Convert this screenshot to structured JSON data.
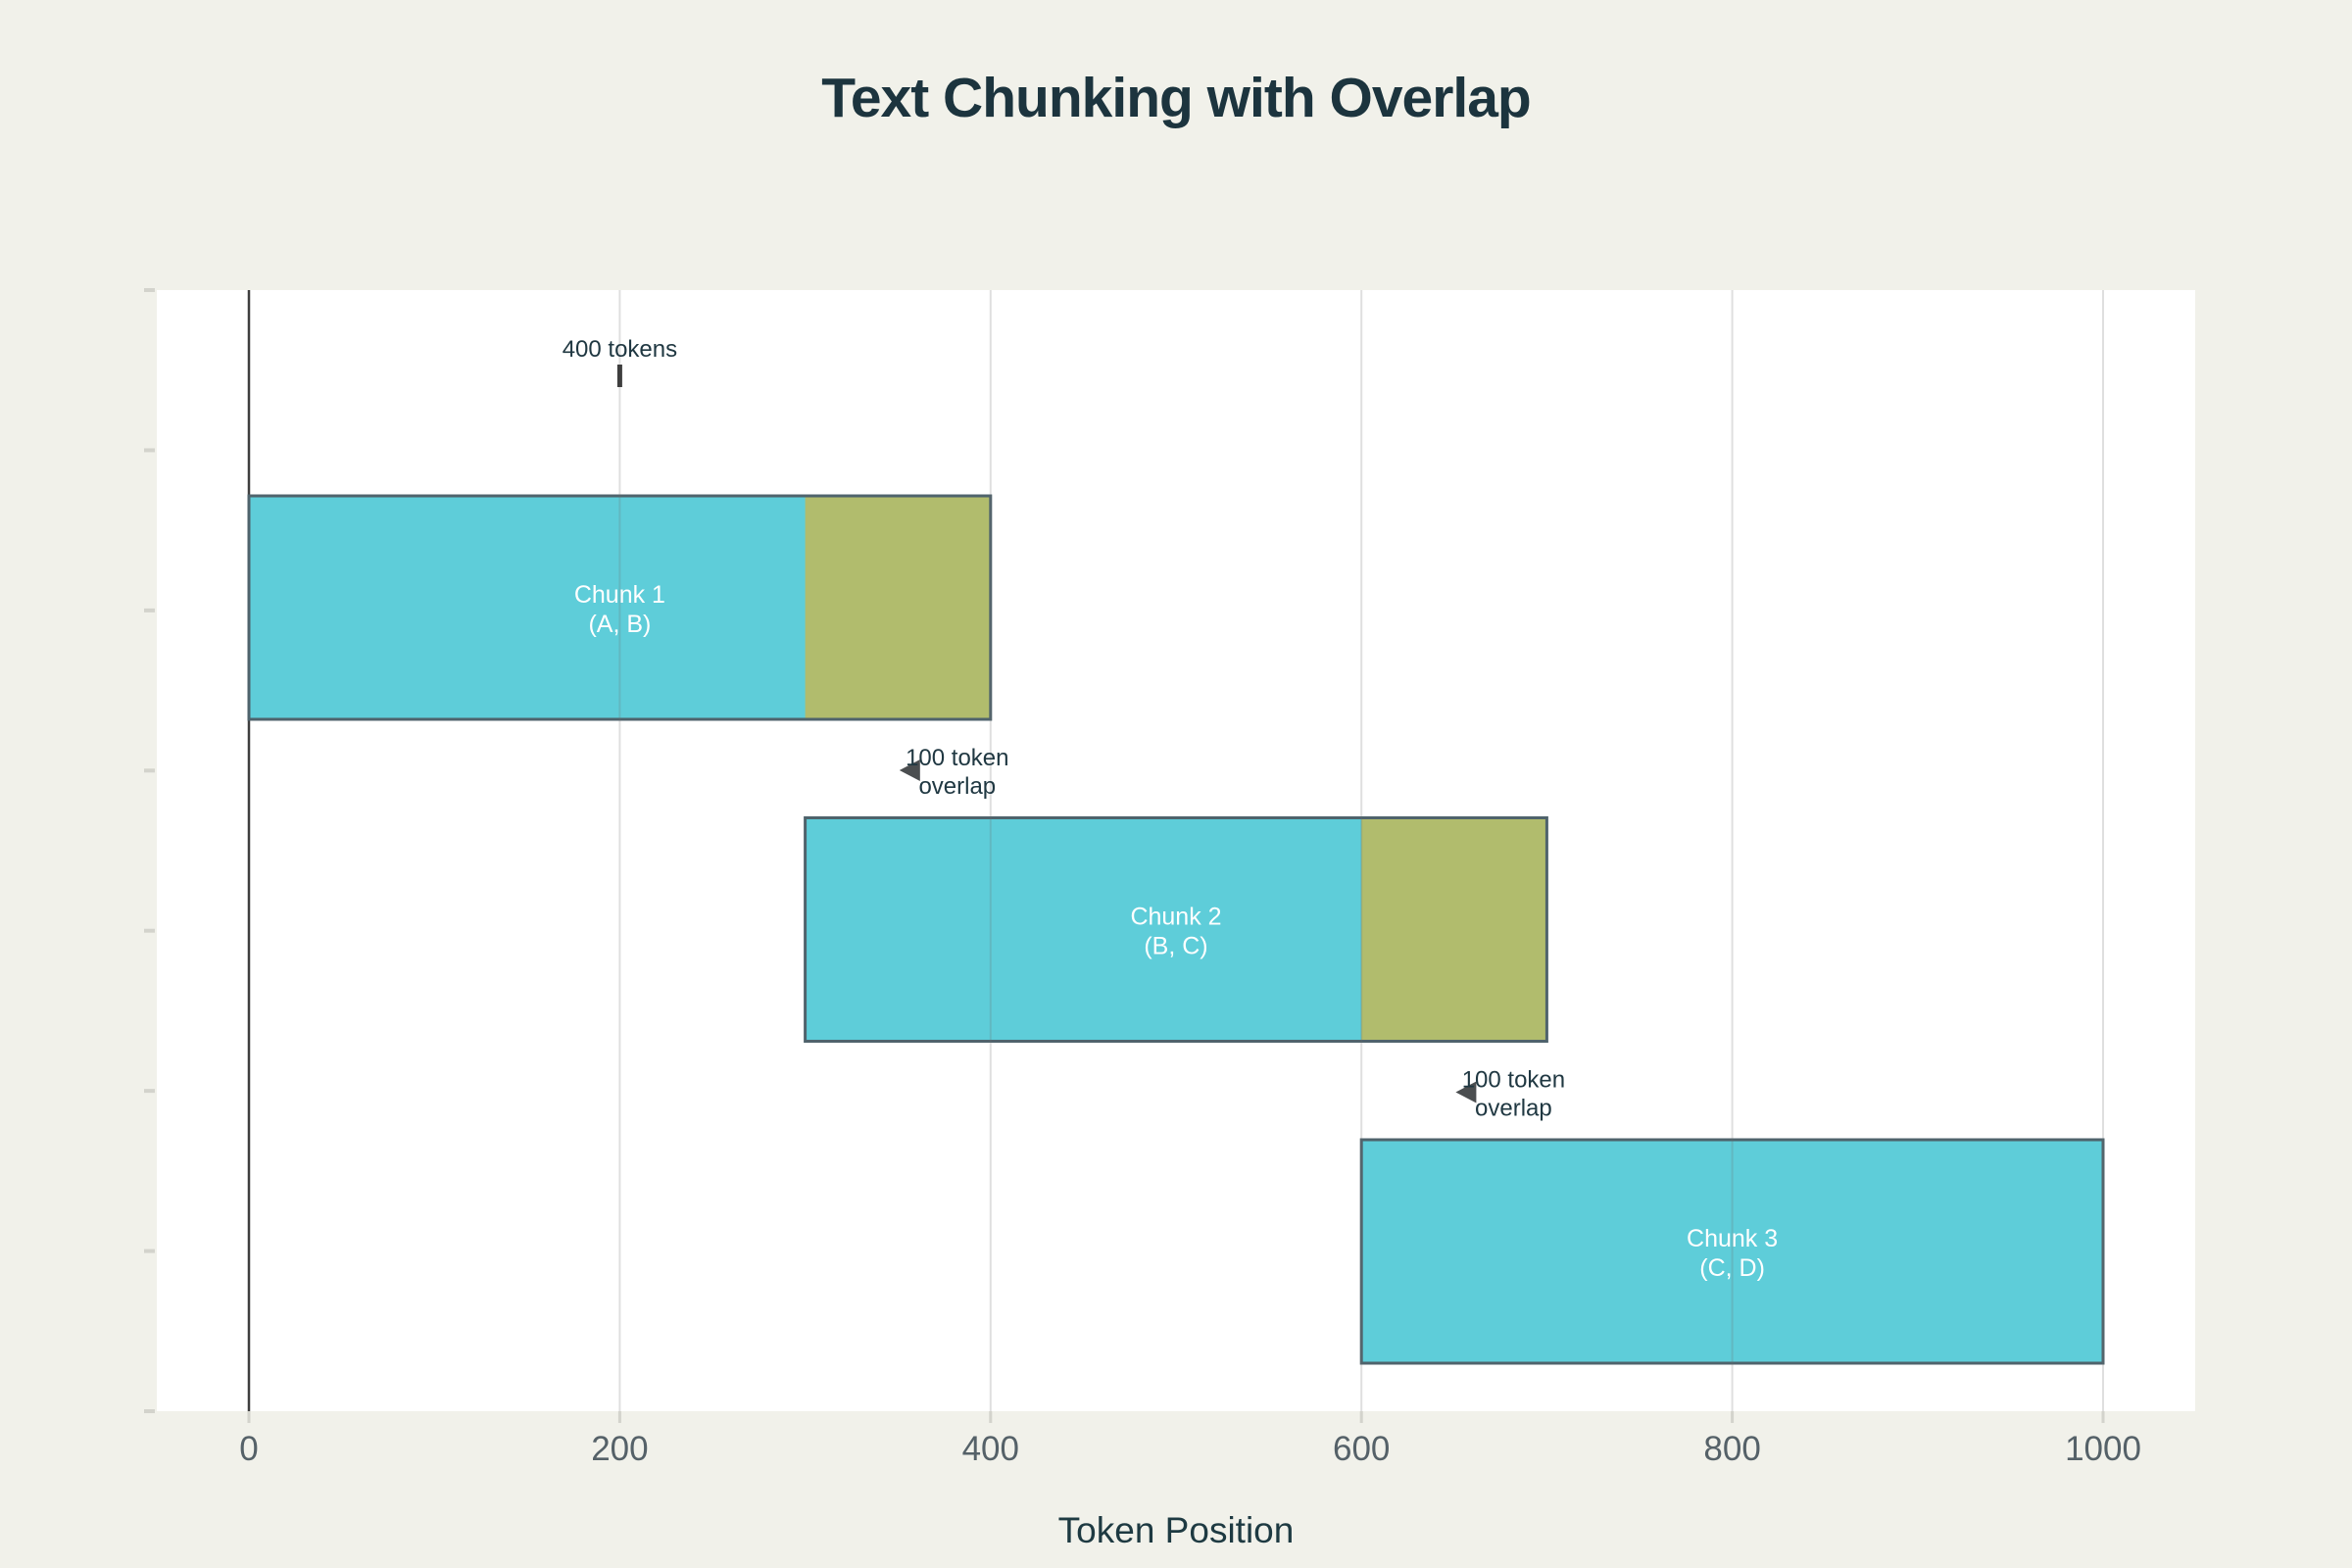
{
  "chart_data": {
    "type": "bar",
    "orientation": "horizontal",
    "title": "Text Chunking with Overlap",
    "xlabel": "Token Position",
    "xlim": [
      -50,
      1050
    ],
    "x_ticks": [
      0,
      200,
      400,
      600,
      800,
      1000
    ],
    "y_tick_count": 8,
    "grid": "vertical",
    "legend": "none",
    "bars": [
      {
        "label": "Chunk 1",
        "sublabel": "(A, B)",
        "start": 0,
        "end": 400,
        "overlap_with_next_start": 300
      },
      {
        "label": "Chunk 2",
        "sublabel": "(B, C)",
        "start": 300,
        "end": 700,
        "overlap_with_next_start": 600
      },
      {
        "label": "Chunk 3",
        "sublabel": "(C, D)",
        "start": 600,
        "end": 1000,
        "overlap_with_next_start": null
      }
    ],
    "annotations": [
      {
        "id": "size-label",
        "text": "400 tokens",
        "at_token": 200,
        "marker": "tick"
      },
      {
        "id": "overlap-1",
        "lines": [
          "100 token",
          "overlap"
        ],
        "arrow": "left",
        "between_bars": [
          1,
          2
        ]
      },
      {
        "id": "overlap-2",
        "lines": [
          "100 token",
          "overlap"
        ],
        "arrow": "left",
        "between_bars": [
          2,
          3
        ]
      }
    ],
    "colors": {
      "page_background": "#f1f1ea",
      "plot_background": "#ffffff",
      "chunk_fill": "#5ecdd9",
      "overlap_fill": "#b8bb64",
      "bar_border": "#4f636c",
      "bar_label_text": "#ffffff",
      "zero_line": "#3e3e3e",
      "gridline": "rgba(110,110,110,0.22)",
      "tick_mark": "#d3d3cc",
      "tick_label": "#556168",
      "title_text": "#1c343e",
      "axis_title_text": "#1e3a42",
      "annotation_text": "#203842",
      "arrow": "#4b4e50"
    }
  }
}
